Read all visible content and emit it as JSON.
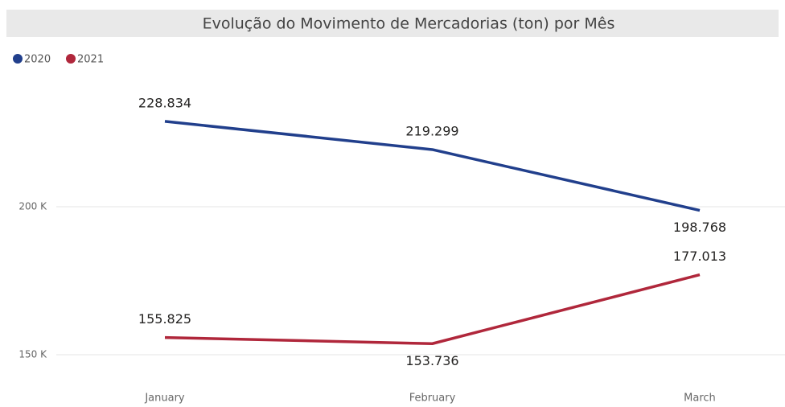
{
  "chart_data": {
    "type": "line",
    "title": "Evolução do Movimento de Mercadorias (ton) por Mês",
    "categories": [
      "January",
      "February",
      "March"
    ],
    "series": [
      {
        "name": "2020",
        "color": "#213f8c",
        "values": [
          228834,
          219299,
          198768
        ],
        "value_labels": [
          "228.834",
          "219.299",
          "198.768"
        ]
      },
      {
        "name": "2021",
        "color": "#b0273b",
        "values": [
          155825,
          153736,
          177013
        ],
        "value_labels": [
          "155.825",
          "153.736",
          "177.013"
        ]
      }
    ],
    "ylim": [
      140000,
      240000
    ],
    "yticks": [
      {
        "value": 150000,
        "label": "150 K"
      },
      {
        "value": 200000,
        "label": "200 K"
      }
    ],
    "grid": true,
    "legend": "top-left"
  }
}
